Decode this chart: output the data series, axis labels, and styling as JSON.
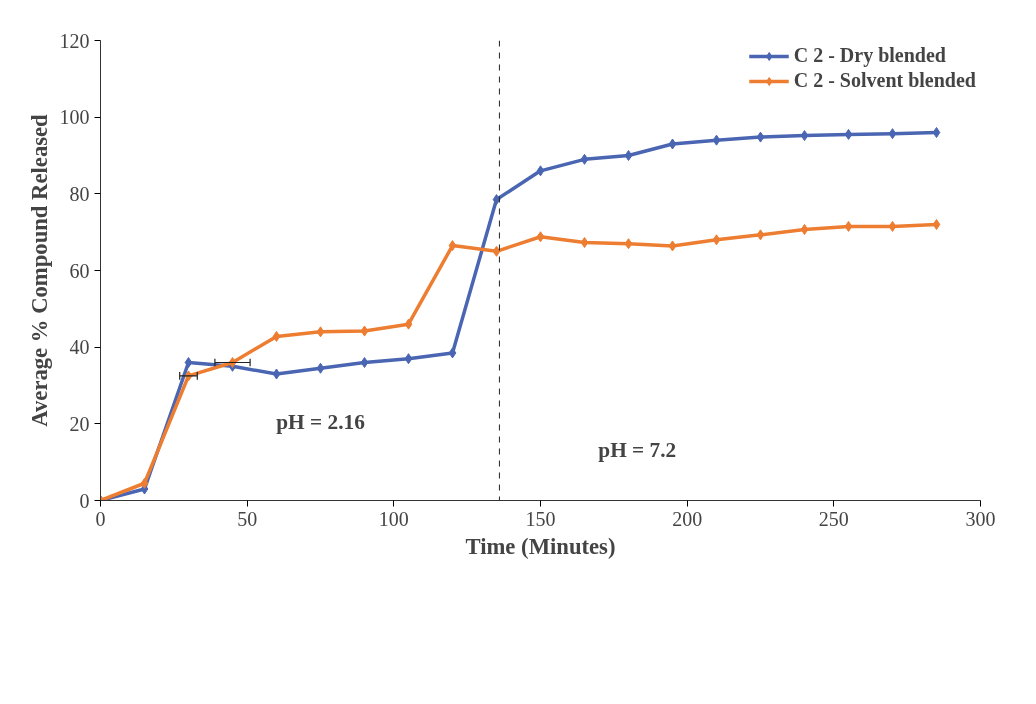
{
  "chart_data": {
    "type": "line",
    "xlabel": "Time (Minutes)",
    "ylabel": "Average % Compound Released",
    "x": [
      0,
      15,
      30,
      45,
      60,
      75,
      90,
      105,
      120,
      135,
      150,
      165,
      180,
      195,
      210,
      225,
      240,
      255,
      270,
      285
    ],
    "series": [
      {
        "name": "C 2 - Dry blended",
        "color": "#4a66b3",
        "values": [
          0,
          3,
          36,
          35,
          33,
          34.5,
          36,
          37,
          38.5,
          78.5,
          86,
          89,
          90,
          93,
          94,
          94.8,
          95.2,
          95.5,
          95.7,
          96
        ]
      },
      {
        "name": "C 2 - Solvent blended",
        "color": "#ed7d31",
        "values": [
          0,
          4.5,
          32.5,
          36,
          42.8,
          44,
          44.2,
          46,
          66.5,
          65,
          68.8,
          67.3,
          67,
          66.4,
          68,
          69.3,
          70.7,
          71.5,
          71.5,
          72
        ],
        "xerrors": [
          null,
          null,
          3,
          [
            39,
            51
          ],
          null,
          null,
          null,
          null,
          null,
          null,
          null,
          null,
          null,
          null,
          null,
          null,
          null,
          null,
          null,
          null
        ]
      }
    ],
    "xlim": [
      0,
      300
    ],
    "xticks": [
      0,
      50,
      100,
      150,
      200,
      250,
      300
    ],
    "ylim": [
      0,
      120
    ],
    "yticks": [
      0,
      20,
      40,
      60,
      80,
      100,
      120
    ],
    "ref_lines": [
      {
        "axis": "x",
        "value": 136,
        "label": null,
        "color": "#222222",
        "line_style": "dashed"
      }
    ],
    "annotations": [
      "pH = 2.16",
      "pH = 7.2"
    ],
    "marker": "diamond",
    "line_style": "solid",
    "grid": false,
    "legend": "top right"
  }
}
